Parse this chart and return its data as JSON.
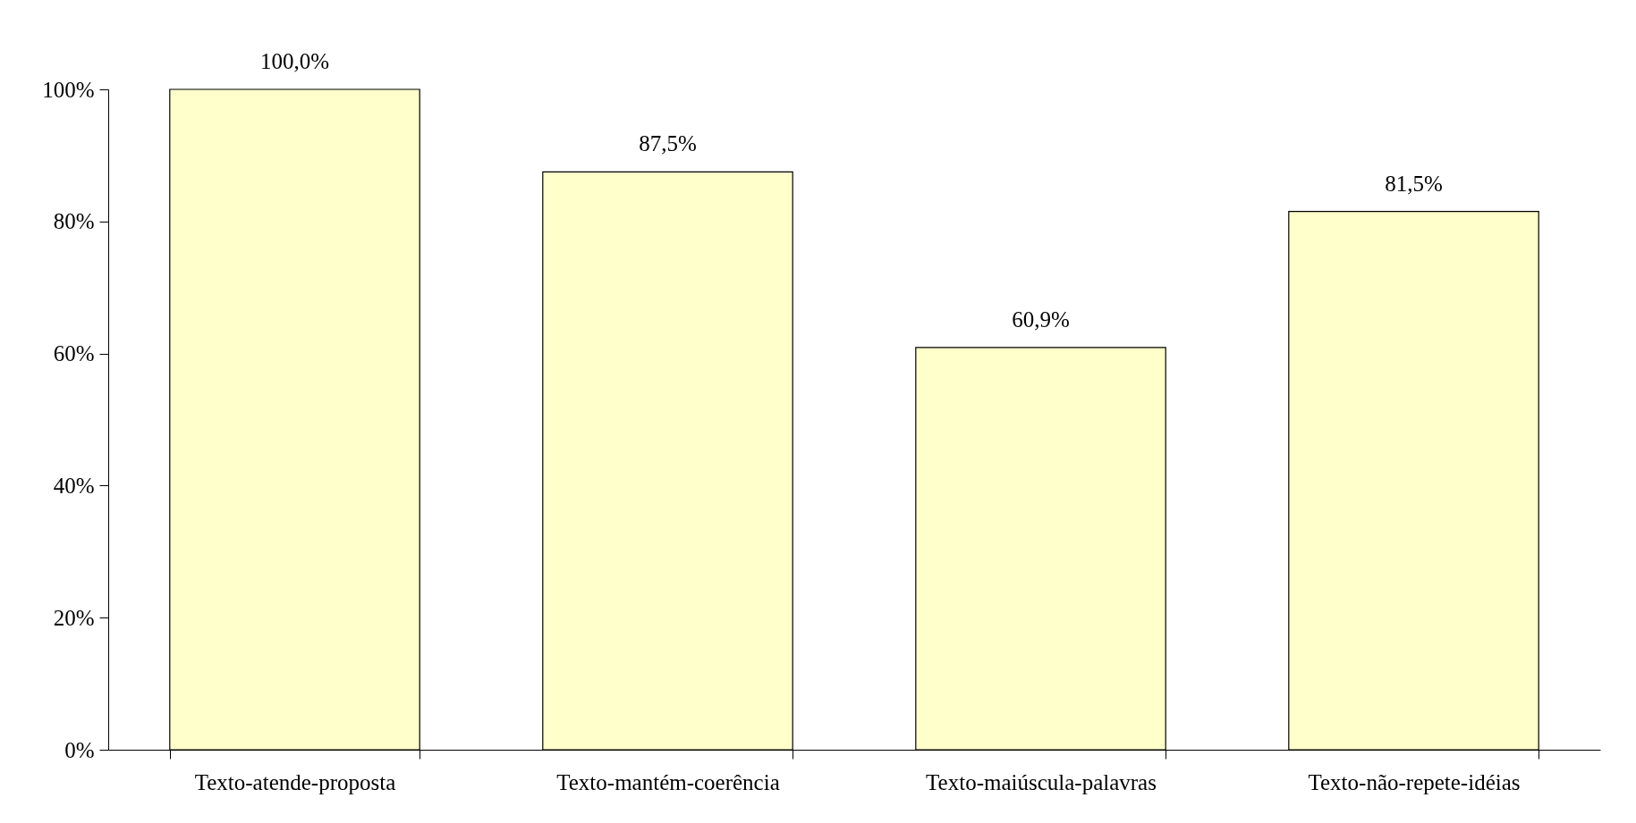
{
  "chart_data": {
    "type": "bar",
    "categories": [
      "Texto-atende-proposta",
      "Texto-mantém-coerência",
      "Texto-maiúscula-palavras",
      "Texto-não-repete-idéias"
    ],
    "values": [
      100.0,
      87.5,
      60.9,
      81.5
    ],
    "value_labels": [
      "100,0%",
      "87,5%",
      "60,9%",
      "81,5%"
    ],
    "color": "#ffffcc",
    "ylim": [
      0,
      100
    ],
    "yticks": [
      {
        "value": 0,
        "label": "0%"
      },
      {
        "value": 20,
        "label": "20%"
      },
      {
        "value": 40,
        "label": "40%"
      },
      {
        "value": 60,
        "label": "60%"
      },
      {
        "value": 80,
        "label": "80%"
      },
      {
        "value": 100,
        "label": "100%"
      }
    ],
    "grid": false
  }
}
